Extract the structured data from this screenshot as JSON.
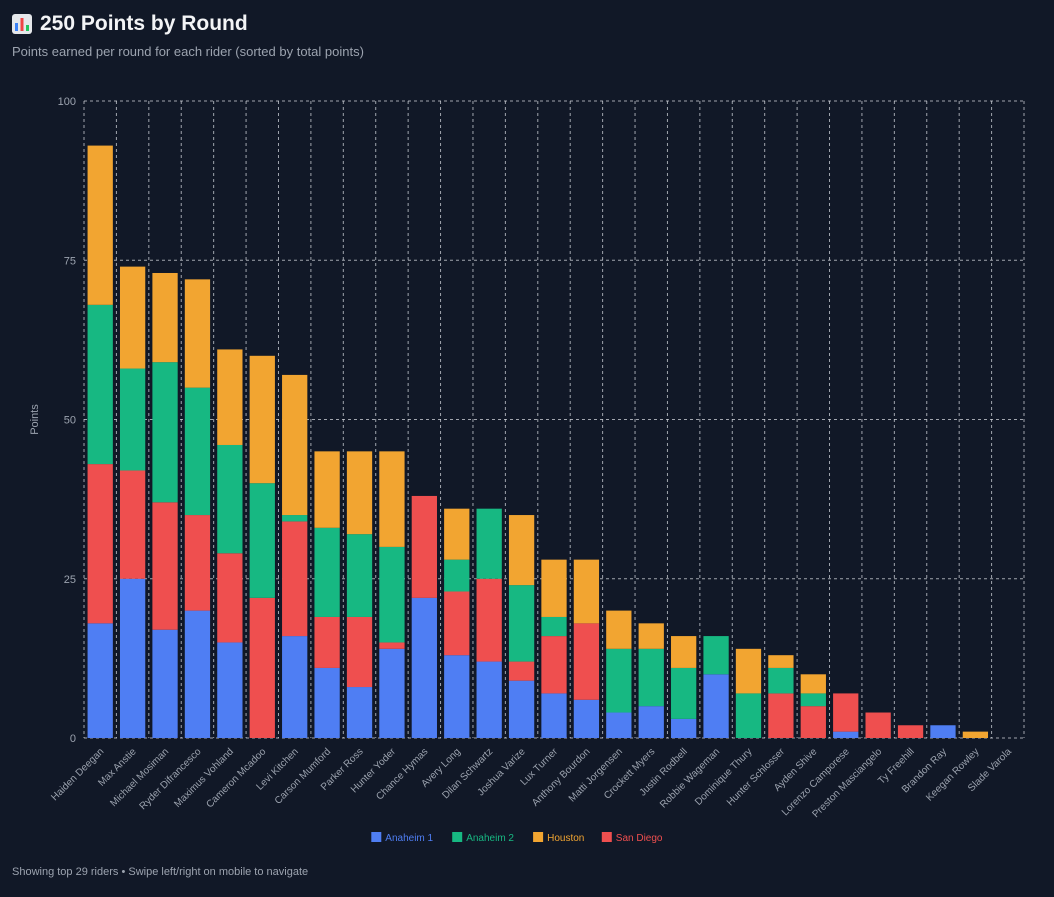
{
  "header": {
    "title": "250 Points by Round",
    "subtitle": "Points earned per round for each rider (sorted by total points)",
    "icon": "bar-chart-icon"
  },
  "footer": {
    "note": "Showing top 29 riders • Swipe left/right on mobile to navigate"
  },
  "chart_data": {
    "type": "bar",
    "stacked": true,
    "title": "250 Points by Round",
    "ylabel": "Points",
    "xlabel": "",
    "ylim": [
      0,
      100
    ],
    "yticks": [
      0,
      25,
      50,
      75,
      100
    ],
    "grid": true,
    "legend": "bottom-center",
    "categories": [
      "Haiden Deegan",
      "Max Anstie",
      "Michael Mosiman",
      "Ryder Difrancesco",
      "Maximus Vohland",
      "Cameron Mcadoo",
      "Levi Kitchen",
      "Carson Mumford",
      "Parker Ross",
      "Hunter Yoder",
      "Chance Hymas",
      "Avery Long",
      "Dilan Schwartz",
      "Joshua Varize",
      "Lux Turner",
      "Anthony Bourdon",
      "Matti Jorgensen",
      "Crockett Myers",
      "Justin Rodbell",
      "Robbie Wageman",
      "Dominique Thury",
      "Hunter Schlosser",
      "Ayden Shive",
      "Lorenzo Camporese",
      "Preston Masciangelo",
      "Ty Freehill",
      "Brandon Ray",
      "Keegan Rowley",
      "Slade Varola"
    ],
    "series": [
      {
        "name": "Anaheim 1",
        "color": "#4f7ef3",
        "values": [
          18,
          25,
          17,
          20,
          15,
          0,
          16,
          11,
          8,
          14,
          22,
          13,
          12,
          9,
          7,
          6,
          4,
          5,
          3,
          10,
          0,
          0,
          0,
          1,
          0,
          0,
          2,
          0,
          0
        ]
      },
      {
        "name": "San Diego",
        "color": "#ef4f4f",
        "values": [
          25,
          17,
          20,
          15,
          14,
          22,
          18,
          8,
          11,
          1,
          16,
          10,
          13,
          3,
          9,
          12,
          0,
          0,
          0,
          0,
          0,
          7,
          5,
          6,
          4,
          2,
          0,
          0,
          0
        ]
      },
      {
        "name": "Anaheim 2",
        "color": "#17b882",
        "values": [
          25,
          16,
          22,
          20,
          17,
          18,
          1,
          14,
          13,
          15,
          0,
          5,
          11,
          12,
          3,
          0,
          10,
          9,
          8,
          6,
          7,
          4,
          2,
          0,
          0,
          0,
          0,
          0,
          0
        ]
      },
      {
        "name": "Houston",
        "color": "#f2a531",
        "values": [
          25,
          16,
          14,
          17,
          15,
          20,
          22,
          12,
          13,
          15,
          0,
          8,
          0,
          11,
          9,
          10,
          6,
          4,
          5,
          0,
          7,
          2,
          3,
          0,
          0,
          0,
          0,
          1,
          0
        ]
      }
    ],
    "legend_order": [
      "Anaheim 1",
      "Anaheim 2",
      "Houston",
      "San Diego"
    ]
  }
}
